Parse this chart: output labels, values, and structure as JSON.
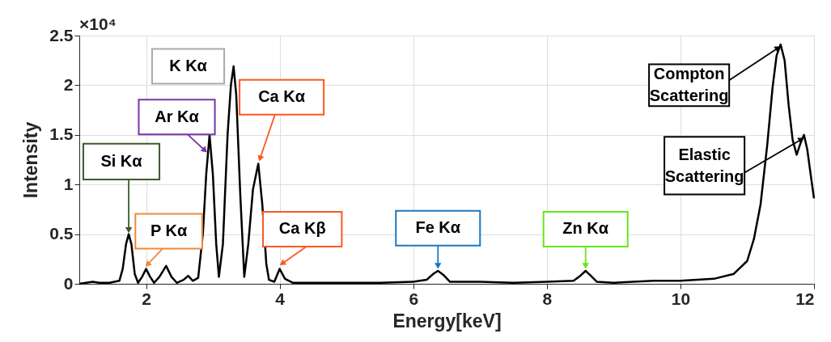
{
  "chart_data": {
    "type": "line",
    "xlabel": "Energy[keV]",
    "ylabel": "Intensity",
    "x": [
      1.0,
      1.1,
      1.2,
      1.3,
      1.45,
      1.6,
      1.65,
      1.7,
      1.74,
      1.78,
      1.83,
      1.88,
      1.94,
      2.0,
      2.06,
      2.12,
      2.2,
      2.3,
      2.38,
      2.46,
      2.56,
      2.63,
      2.7,
      2.78,
      2.85,
      2.9,
      2.95,
      3.0,
      3.05,
      3.09,
      3.15,
      3.22,
      3.27,
      3.31,
      3.35,
      3.41,
      3.47,
      3.53,
      3.6,
      3.68,
      3.74,
      3.8,
      3.84,
      3.92,
      4.0,
      4.08,
      4.2,
      4.5,
      5.0,
      5.5,
      6.0,
      6.2,
      6.3,
      6.37,
      6.45,
      6.55,
      7.0,
      7.5,
      8.0,
      8.4,
      8.5,
      8.58,
      8.66,
      8.75,
      9.0,
      9.6,
      10.0,
      10.5,
      10.8,
      11.0,
      11.1,
      11.2,
      11.3,
      11.38,
      11.44,
      11.5,
      11.56,
      11.62,
      11.68,
      11.74,
      11.8,
      11.85,
      11.9,
      11.95,
      12.0
    ],
    "series": [
      {
        "color": "#000000",
        "values": [
          0.0,
          0.01,
          0.02,
          0.01,
          0.01,
          0.03,
          0.15,
          0.4,
          0.5,
          0.4,
          0.1,
          0.01,
          0.07,
          0.15,
          0.07,
          0.01,
          0.07,
          0.18,
          0.07,
          0.01,
          0.04,
          0.08,
          0.03,
          0.06,
          0.5,
          1.1,
          1.5,
          1.1,
          0.4,
          0.07,
          0.4,
          1.5,
          2.0,
          2.19,
          1.9,
          0.9,
          0.07,
          0.4,
          0.95,
          1.21,
          0.8,
          0.2,
          0.04,
          0.02,
          0.15,
          0.05,
          0.01,
          0.01,
          0.01,
          0.01,
          0.02,
          0.04,
          0.1,
          0.13,
          0.09,
          0.02,
          0.02,
          0.01,
          0.02,
          0.03,
          0.08,
          0.13,
          0.08,
          0.02,
          0.01,
          0.03,
          0.03,
          0.05,
          0.1,
          0.23,
          0.45,
          0.8,
          1.4,
          1.98,
          2.3,
          2.41,
          2.25,
          1.8,
          1.45,
          1.3,
          1.42,
          1.5,
          1.35,
          1.1,
          0.86
        ]
      }
    ],
    "xlim": [
      1,
      12
    ],
    "xticks": [
      2,
      4,
      6,
      8,
      10,
      12
    ],
    "ylim": [
      0,
      2.5
    ],
    "yticks": [
      0,
      0.5,
      1,
      1.5,
      2,
      2.5
    ],
    "grid": true,
    "marker": "none",
    "line_style": "solid",
    "annotations": [
      "×10⁴",
      {
        "text": "Si Kα",
        "x": 1.74,
        "y": 0.5
      },
      {
        "text": "P Kα",
        "x": 2.0,
        "y": 0.15
      },
      {
        "text": "K Kα",
        "x": 3.31,
        "y": 2.19
      },
      {
        "text": "Ar Kα",
        "x": 2.95,
        "y": 1.5
      },
      {
        "text": "Ca Kα",
        "x": 3.68,
        "y": 1.21
      },
      {
        "text": "Ca Kβ",
        "x": 4.0,
        "y": 0.15
      },
      {
        "text": "Fe Kα",
        "x": 6.37,
        "y": 0.13
      },
      {
        "text": "Zn Kα",
        "x": 8.58,
        "y": 0.13
      },
      {
        "text": "Compton Scattering",
        "x": 11.5,
        "y": 2.41
      },
      {
        "text": "Elastic Scattering",
        "x": 11.85,
        "y": 1.5
      }
    ]
  }
}
